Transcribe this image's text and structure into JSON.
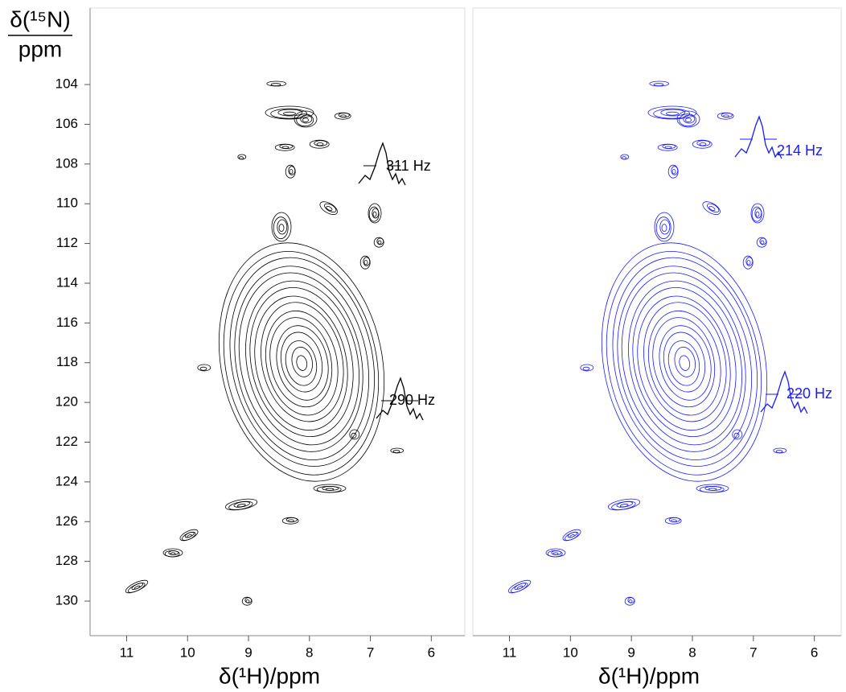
{
  "chart_data": [
    {
      "type": "contour",
      "color": "#000000",
      "xlabel": "δ(¹H)/ppm",
      "ylabel": "δ(¹⁵N)",
      "ylabel_unit": "ppm",
      "xlim": [
        11.6,
        5.45
      ],
      "ylim": [
        100.15,
        131.74
      ],
      "xticks": [
        11,
        10,
        9,
        8,
        7,
        6
      ],
      "yticks": [
        104,
        106,
        108,
        110,
        112,
        114,
        116,
        118,
        120,
        122,
        124,
        126,
        128,
        130
      ],
      "annotations": [
        "311 Hz",
        "290 Hz"
      ]
    },
    {
      "type": "contour",
      "color": "#1a1aff",
      "xlabel": "δ(¹H)/ppm",
      "xlim": [
        11.6,
        5.56
      ],
      "ylim": [
        100.15,
        131.74
      ],
      "xticks": [
        11,
        10,
        9,
        8,
        7,
        6
      ],
      "annotations": [
        "214 Hz",
        "220 Hz"
      ]
    }
  ]
}
